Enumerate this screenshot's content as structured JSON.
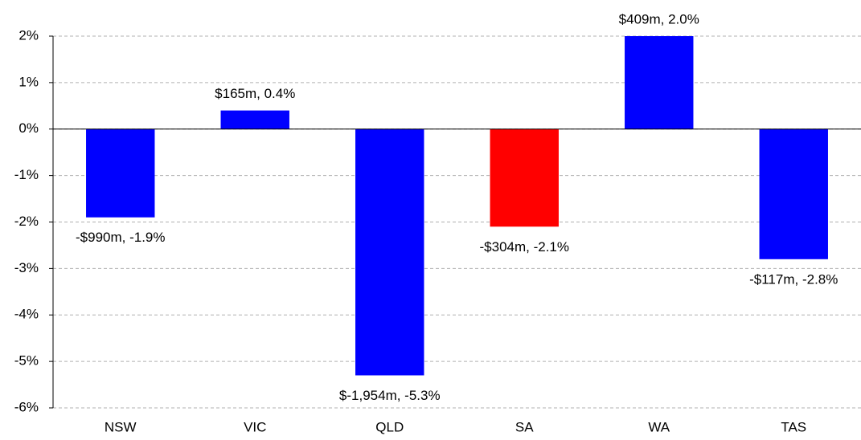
{
  "chart_data": {
    "type": "bar",
    "categories": [
      "NSW",
      "VIC",
      "QLD",
      "SA",
      "WA",
      "TAS"
    ],
    "values": [
      -1.9,
      0.4,
      -5.3,
      -2.1,
      2.0,
      -2.8
    ],
    "value_labels": [
      "-$990m, -1.9%",
      "$165m, 0.4%",
      "$-1,954m, -5.3%",
      "-$304m, -2.1%",
      "$409m, 2.0%",
      "-$117m, -2.8%"
    ],
    "colors": [
      "#0000ff",
      "#0000ff",
      "#0000ff",
      "#ff0000",
      "#0000ff",
      "#0000ff"
    ],
    "ylim": [
      -6,
      2
    ],
    "yticks": [
      {
        "value": -6,
        "label": "-6%"
      },
      {
        "value": -5,
        "label": "-5%"
      },
      {
        "value": -4,
        "label": "-4%"
      },
      {
        "value": -3,
        "label": "-3%"
      },
      {
        "value": -2,
        "label": "-2%"
      },
      {
        "value": -1,
        "label": "-1%"
      },
      {
        "value": 0,
        "label": "0%"
      },
      {
        "value": 1,
        "label": "1%"
      },
      {
        "value": 2,
        "label": "2%"
      }
    ],
    "grid": true
  }
}
